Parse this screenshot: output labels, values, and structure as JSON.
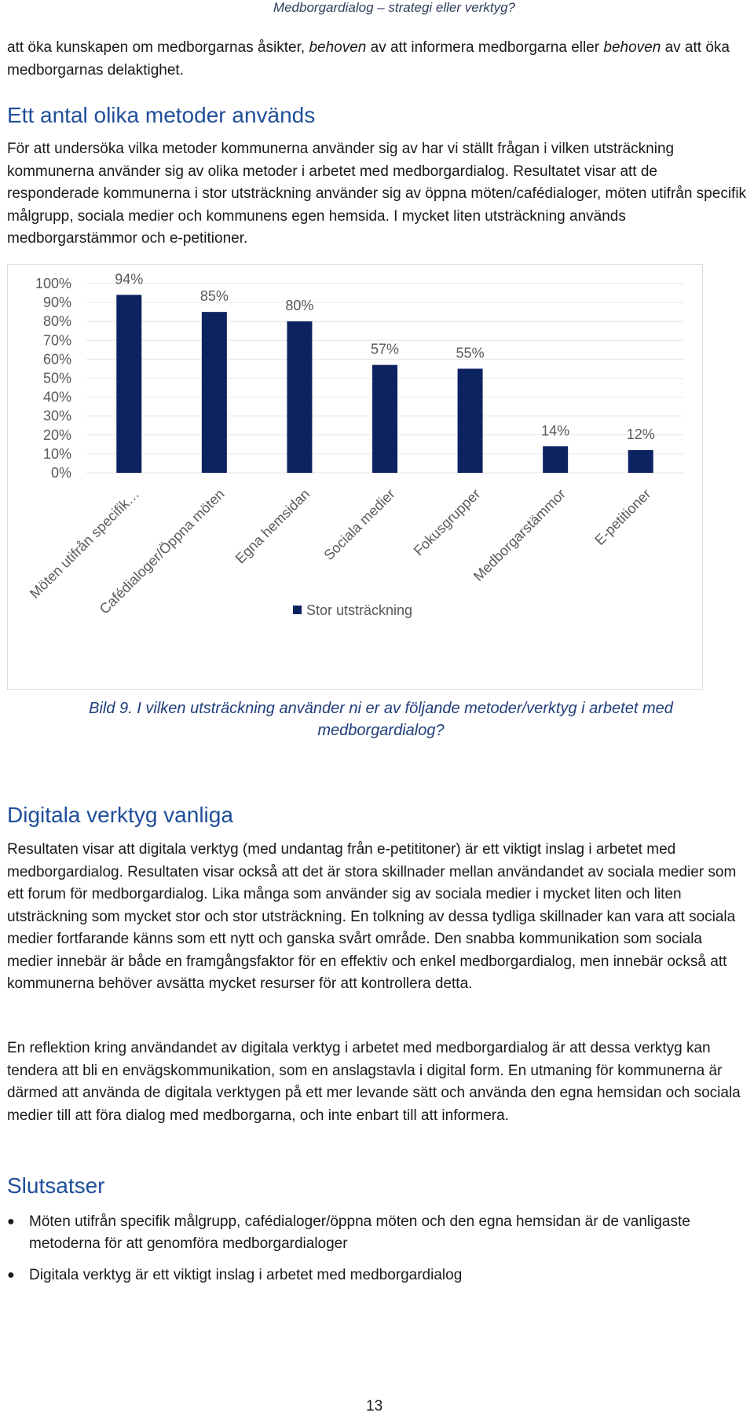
{
  "header": {
    "running_title": "Medborgardialog – strategi eller verktyg?"
  },
  "intro_text": {
    "part1": "att öka kunskapen om medborgarnas åsikter, ",
    "em1": "behoven",
    "part2": " av att informera medborgarna eller ",
    "em2": "behoven",
    "part3": " av att öka medborgarnas delaktighet."
  },
  "section1": {
    "heading": "Ett antal olika metoder används",
    "paragraph": "För att undersöka vilka metoder kommunerna använder sig av har vi ställt frågan i vilken utsträckning kommunerna använder sig av olika metoder i arbetet med medborgardialog. Resultatet visar att de responderade kommunerna i stor utsträckning använder sig av öppna möten/cafédialoger, möten utifrån specifik målgrupp, sociala medier och kommunens egen hemsida. I mycket liten utsträckning används medborgarstämmor och e-petitioner."
  },
  "chart_data": {
    "type": "bar",
    "categories": [
      "Möten utifrån specifik…",
      "Cafédialoger/Öppna möten",
      "Egna hemsidan",
      "Sociala medier",
      "Fokusgrupper",
      "Medborgarstämmor",
      "E-petitioner"
    ],
    "series": [
      {
        "name": "Stor utsträckning",
        "values": [
          94,
          85,
          80,
          57,
          55,
          14,
          12
        ],
        "color": "#0d2260"
      }
    ],
    "data_labels": [
      "94%",
      "85%",
      "80%",
      "57%",
      "55%",
      "14%",
      "12%"
    ],
    "y_ticks": [
      "0%",
      "10%",
      "20%",
      "30%",
      "40%",
      "50%",
      "60%",
      "70%",
      "80%",
      "90%",
      "100%"
    ],
    "ylim": [
      0,
      100
    ],
    "grid": true,
    "legend_position": "bottom",
    "label_color": "#595959",
    "grid_color": "#e6e6e6"
  },
  "figure_caption": "Bild 9. I vilken utsträckning använder ni er av följande metoder/verktyg i arbetet med medborgardialog?",
  "section2": {
    "heading": "Digitala verktyg vanliga",
    "paragraph1": "Resultaten visar att digitala verktyg (med undantag från e-petititoner) är ett viktigt inslag i arbetet med medborgardialog.  Resultaten visar också att det är stora skillnader mellan användandet av sociala medier som ett forum för medborgardialog. Lika många som använder sig av sociala medier i mycket liten och liten utsträckning som mycket stor och stor utsträckning. En tolkning av dessa tydliga skillnader kan vara att sociala medier fortfarande känns som ett nytt och ganska svårt område. Den snabba kommunikation som sociala medier innebär är både en framgångsfaktor för en effektiv och enkel medborgardialog, men innebär också att kommunerna behöver avsätta mycket resurser för att kontrollera detta.",
    "paragraph2": "En reflektion kring användandet av digitala verktyg i arbetet med medborgardialog är att dessa verktyg kan tendera att bli en envägskommunikation, som en anslagstavla i digital form. En utmaning för kommunerna är därmed att använda de digitala verktygen på ett mer levande sätt och använda den egna hemsidan och sociala medier till att föra dialog med medborgarna, och inte enbart till att informera."
  },
  "section3": {
    "heading": "Slutsatser",
    "bullets": [
      "Möten utifrån specifik målgrupp, cafédialoger/öppna möten och den egna hemsidan är de vanligaste metoderna för att genomföra medborgardialoger",
      "Digitala verktyg är ett viktigt inslag i arbetet med medborgardialog"
    ],
    "bullet_symbol": "●"
  },
  "footer": {
    "page_number": "13"
  },
  "colors": {
    "heading": "#1f4e99",
    "caption": "#1f3d7a",
    "bar": "#0d2260"
  }
}
